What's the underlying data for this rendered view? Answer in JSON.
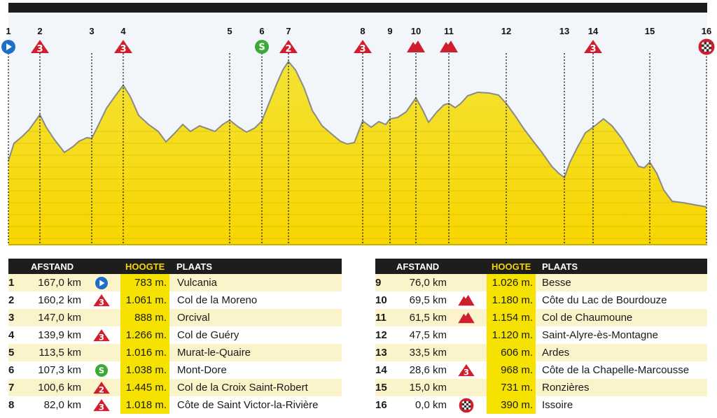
{
  "profile": {
    "points": [
      {
        "n": "1",
        "icon": "start"
      },
      {
        "n": "2",
        "icon": "cat3"
      },
      {
        "n": "3",
        "icon": ""
      },
      {
        "n": "4",
        "icon": "cat3"
      },
      {
        "n": "5",
        "icon": ""
      },
      {
        "n": "6",
        "icon": "sprint"
      },
      {
        "n": "7",
        "icon": "cat2"
      },
      {
        "n": "8",
        "icon": "cat3"
      },
      {
        "n": "9",
        "icon": ""
      },
      {
        "n": "10",
        "icon": "mountain"
      },
      {
        "n": "11",
        "icon": "mountain"
      },
      {
        "n": "12",
        "icon": ""
      },
      {
        "n": "13",
        "icon": ""
      },
      {
        "n": "14",
        "icon": "cat3"
      },
      {
        "n": "15",
        "icon": ""
      },
      {
        "n": "16",
        "icon": "finish"
      }
    ]
  },
  "tables": [
    {
      "headers": {
        "afstand": "AFSTAND",
        "hoogte": "HOOGTE",
        "plaats": "PLAATS"
      },
      "rows": [
        {
          "num": "1",
          "dist": "167,0 km",
          "icon": "start",
          "alt": "783 m.",
          "place": "Vulcania"
        },
        {
          "num": "2",
          "dist": "160,2 km",
          "icon": "cat3",
          "alt": "1.061 m.",
          "place": "Col de la Moreno"
        },
        {
          "num": "3",
          "dist": "147,0 km",
          "icon": "",
          "alt": "888 m.",
          "place": "Orcival"
        },
        {
          "num": "4",
          "dist": "139,9 km",
          "icon": "cat3",
          "alt": "1.266 m.",
          "place": "Col de Guéry"
        },
        {
          "num": "5",
          "dist": "113,5 km",
          "icon": "",
          "alt": "1.016 m.",
          "place": "Murat-le-Quaire"
        },
        {
          "num": "6",
          "dist": "107,3 km",
          "icon": "sprint",
          "alt": "1.038 m.",
          "place": "Mont-Dore"
        },
        {
          "num": "7",
          "dist": "100,6 km",
          "icon": "cat2",
          "alt": "1.445 m.",
          "place": "Col de la Croix Saint-Robert"
        },
        {
          "num": "8",
          "dist": "82,0 km",
          "icon": "cat3",
          "alt": "1.018 m.",
          "place": "Côte de Saint Victor-la-Rivière"
        }
      ]
    },
    {
      "headers": {
        "afstand": "AFSTAND",
        "hoogte": "HOOGTE",
        "plaats": "PLAATS"
      },
      "rows": [
        {
          "num": "9",
          "dist": "76,0 km",
          "icon": "",
          "alt": "1.026 m.",
          "place": "Besse"
        },
        {
          "num": "10",
          "dist": "69,5 km",
          "icon": "mountain",
          "alt": "1.180 m.",
          "place": "Côte du Lac de Bourdouze"
        },
        {
          "num": "11",
          "dist": "61,5 km",
          "icon": "mountain",
          "alt": "1.154 m.",
          "place": "Col de Chaumoune"
        },
        {
          "num": "12",
          "dist": "47,5 km",
          "icon": "",
          "alt": "1.120 m.",
          "place": "Saint-Alyre-ès-Montagne"
        },
        {
          "num": "13",
          "dist": "33,5 km",
          "icon": "",
          "alt": "606 m.",
          "place": "Ardes"
        },
        {
          "num": "14",
          "dist": "28,6 km",
          "icon": "cat3",
          "alt": "968 m.",
          "place": "Côte de la Chapelle-Marcousse"
        },
        {
          "num": "15",
          "dist": "15,0 km",
          "icon": "",
          "alt": "731 m.",
          "place": "Ronzières"
        },
        {
          "num": "16",
          "dist": "0,0 km",
          "icon": "finish",
          "alt": "390 m.",
          "place": "Issoire"
        }
      ]
    }
  ],
  "icon_names": {
    "start": "start-icon",
    "finish": "finish-flag-icon",
    "sprint": "sprint-icon",
    "mountain": "mountain-top-icon",
    "cat2": "category-2-climb-icon",
    "cat3": "category-3-climb-icon"
  },
  "colors": {
    "fill_top": "#f4e43a",
    "fill_bottom": "#f7d600",
    "climb_red": "#cf1f2e",
    "sprint_green": "#3aa935",
    "start_blue": "#1e6fc9",
    "header_dark": "#1d1d1d",
    "altitude_col": "#f6e200",
    "row_shade": "#fbf3c9"
  }
}
